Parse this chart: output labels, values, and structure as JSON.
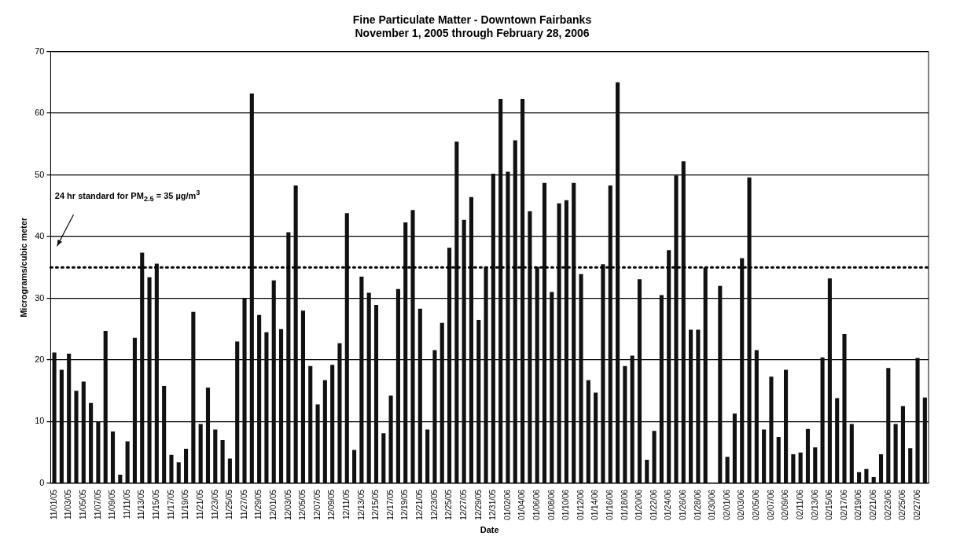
{
  "chart_data": {
    "type": "bar",
    "title": "Fine Particulate Matter - Downtown Fairbanks",
    "subtitle": "November 1, 2005 through February 28, 2006",
    "xlabel": "Date",
    "ylabel": "Micrograms/cubic meter",
    "categories": [
      "11/01/05",
      null,
      "11/03/05",
      null,
      "11/05/05",
      null,
      "11/07/05",
      null,
      "11/09/05",
      null,
      "11/11/05",
      null,
      "11/13/05",
      null,
      "11/15/05",
      null,
      "11/17/05",
      null,
      "11/19/05",
      null,
      "11/21/05",
      null,
      "11/23/05",
      null,
      "11/25/05",
      null,
      "11/27/05",
      null,
      "11/29/05",
      null,
      "12/01/05",
      null,
      "12/03/05",
      null,
      "12/05/05",
      null,
      "12/07/05",
      null,
      "12/09/05",
      null,
      "12/11/05",
      null,
      "12/13/05",
      null,
      "12/15/05",
      null,
      "12/17/05",
      null,
      "12/19/05",
      null,
      "12/21/05",
      null,
      "12/23/05",
      null,
      "12/25/05",
      null,
      "12/27/05",
      null,
      "12/29/05",
      null,
      "12/31/05",
      null,
      "01/02/06",
      null,
      "01/04/06",
      null,
      "01/06/06",
      null,
      "01/08/06",
      null,
      "01/10/06",
      null,
      "01/12/06",
      null,
      "01/14/06",
      null,
      "01/16/06",
      null,
      "01/18/06",
      null,
      "01/20/06",
      null,
      "01/22/06",
      null,
      "01/24/06",
      null,
      "01/26/06",
      null,
      "01/28/06",
      null,
      "01/30/06",
      null,
      "02/01/06",
      null,
      "02/03/06",
      null,
      "02/05/06",
      null,
      "02/07/06",
      null,
      "02/09/06",
      null,
      "02/11/06",
      null,
      "02/13/06",
      null,
      "02/15/06",
      null,
      "02/17/06",
      null,
      "02/19/06",
      null,
      "02/21/06",
      null,
      "02/23/06",
      null,
      "02/25/06",
      null,
      "02/27/06",
      null
    ],
    "values": [
      21.2,
      18.4,
      21,
      15,
      16.5,
      13,
      10,
      24.7,
      8.4,
      1.4,
      6.8,
      23.6,
      37.4,
      33.4,
      35.6,
      15.8,
      4.6,
      3.4,
      5.6,
      27.8,
      9.6,
      15.5,
      8.7,
      7,
      4,
      23,
      30,
      63.2,
      27.3,
      24.5,
      32.9,
      25,
      40.7,
      48.3,
      28,
      19,
      12.8,
      16.7,
      19.2,
      22.7,
      43.8,
      5.4,
      33.5,
      30.9,
      28.9,
      8.1,
      14.2,
      31.5,
      42.3,
      44.3,
      28.3,
      8.7,
      21.6,
      26,
      38.2,
      55.4,
      42.7,
      46.4,
      26.5,
      35.1,
      50.2,
      62.3,
      50.5,
      55.6,
      62.3,
      44.1,
      35.1,
      48.7,
      31,
      45.4,
      45.9,
      48.7,
      33.9,
      16.7,
      14.7,
      35.5,
      48.3,
      65,
      19,
      20.7,
      33.1,
      3.8,
      8.5,
      30.5,
      37.8,
      49.9,
      52.2,
      24.9,
      24.9,
      35,
      null,
      32,
      4.3,
      11.3,
      36.5,
      49.6,
      21.6,
      8.7,
      17.3,
      7.5,
      18.4,
      4.7,
      5,
      8.8,
      5.8,
      20.4,
      33.2,
      13.8,
      24.2,
      9.6,
      1.8,
      2.3,
      1,
      4.7,
      18.7,
      9.6,
      12.5,
      5.7,
      20.3,
      13.9
    ],
    "color": "#111111",
    "ylim": [
      0,
      70
    ],
    "yticks": [
      0,
      10,
      20,
      30,
      40,
      50,
      60,
      70
    ],
    "grid": "y",
    "legend": false,
    "ref_lines": [
      {
        "axis": "y",
        "value": 35,
        "label": "24 hr standard for PM$_{2.5}$ = 35 µg/m$^{3}$",
        "color": "#000000",
        "line_style": "dotted"
      }
    ]
  }
}
